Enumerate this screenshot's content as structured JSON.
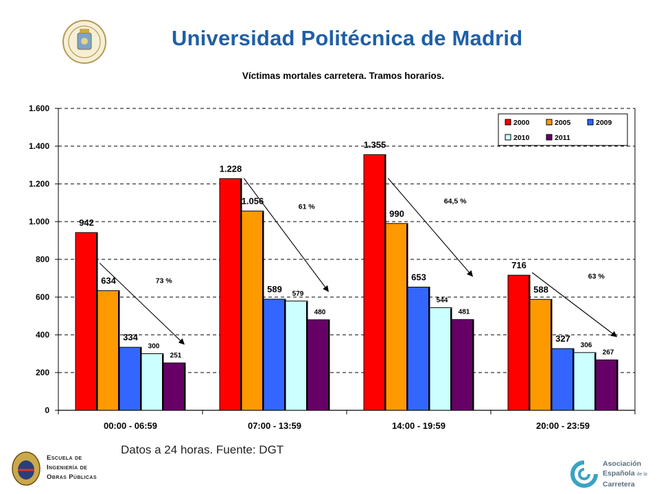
{
  "header": {
    "title": "Universidad Politécnica de Madrid"
  },
  "chart_data": {
    "type": "bar",
    "title": "Víctimas mortales carretera. Tramos horarios.",
    "categories": [
      "00:00 - 06:59",
      "07:00 - 13:59",
      "14:00 - 19:59",
      "20:00 - 23:59"
    ],
    "series": [
      {
        "name": "2000",
        "values": [
          942,
          1228,
          1355,
          716
        ],
        "labels": [
          "942",
          "1.228",
          "1.355",
          "716"
        ],
        "color": "#ff0000"
      },
      {
        "name": "2005",
        "values": [
          634,
          1056,
          990,
          588
        ],
        "labels": [
          "634",
          "1.056",
          "990",
          "588"
        ],
        "color": "#ff9900"
      },
      {
        "name": "2009",
        "values": [
          334,
          589,
          653,
          327
        ],
        "labels": [
          "334",
          "589",
          "653",
          "327"
        ],
        "color": "#3366ff"
      },
      {
        "name": "2010",
        "values": [
          300,
          579,
          544,
          306
        ],
        "labels": [
          "300",
          "579",
          "544",
          "306"
        ],
        "color": "#ccffff"
      },
      {
        "name": "2011",
        "values": [
          251,
          480,
          481,
          267
        ],
        "labels": [
          "251",
          "480",
          "481",
          "267"
        ],
        "color": "#660066"
      }
    ],
    "ylim": [
      0,
      1600
    ],
    "yticks": [
      0,
      200,
      400,
      600,
      800,
      1000,
      1200,
      1400,
      1600
    ],
    "ytick_labels": [
      "0",
      "200",
      "400",
      "600",
      "800",
      "1.000",
      "1.200",
      "1.400",
      "1.600"
    ],
    "grid": "horizontal dashed",
    "legend": "top-right",
    "annotations": [
      {
        "text": "73 %",
        "from": [
          0,
          780
        ],
        "to": [
          4,
          350
        ]
      },
      {
        "text": "61 %",
        "from": [
          0,
          1230
        ],
        "to": [
          4,
          630
        ]
      },
      {
        "text": "64,5 %",
        "from": [
          0,
          1230
        ],
        "to": [
          4,
          710
        ]
      },
      {
        "text": "63 %",
        "from": [
          0,
          730
        ],
        "to": [
          4,
          390
        ]
      }
    ]
  },
  "footer": {
    "source": "Datos a 24 horas. Fuente: DGT",
    "school_lines": [
      "Escuela de",
      "Ingeniería de",
      "Obras Públicas"
    ],
    "association_lines": [
      "Asociación",
      "Española",
      "de la",
      "Carretera"
    ]
  }
}
